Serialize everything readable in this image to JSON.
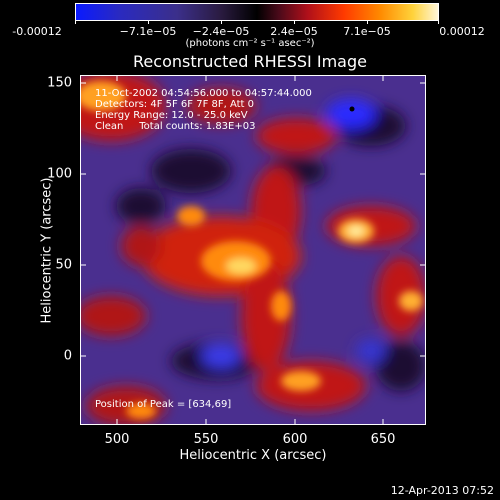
{
  "colorbar": {
    "tick_labels": [
      "-0.00012",
      "−7.1e−05",
      "−2.4e−05",
      "2.4e−05",
      "7.1e−05",
      "0.00012"
    ],
    "units": "(photons cm⁻² s⁻¹ asec⁻²)"
  },
  "chart_data": {
    "type": "heatmap",
    "title": "Reconstructed RHESSI Image",
    "xlabel": "Heliocentric X (arcsec)",
    "ylabel": "Heliocentric Y (arcsec)",
    "xlim": [
      478,
      672
    ],
    "ylim": [
      -37,
      155
    ],
    "x_ticks": [
      "500",
      "550",
      "600",
      "650"
    ],
    "y_ticks": [
      "150",
      "100",
      "50",
      "0"
    ],
    "value_range": [
      -0.00012,
      0.00012
    ],
    "annotations": [
      "11-Oct-2002 04:54:56.000 to 04:57:44.000",
      "Detectors: 4F 5F 6F 7F 8F, Att 0",
      "Energy Range: 12.0 - 25.0 keV",
      "Clean     Total counts: 1.83E+03"
    ],
    "peak_label": "Position of Peak = [634,69]",
    "peak": [
      634,
      69
    ]
  },
  "timestamp": "12-Apr-2013 07:52",
  "colors": {
    "frame": "#ffffff",
    "background": "#000000"
  }
}
